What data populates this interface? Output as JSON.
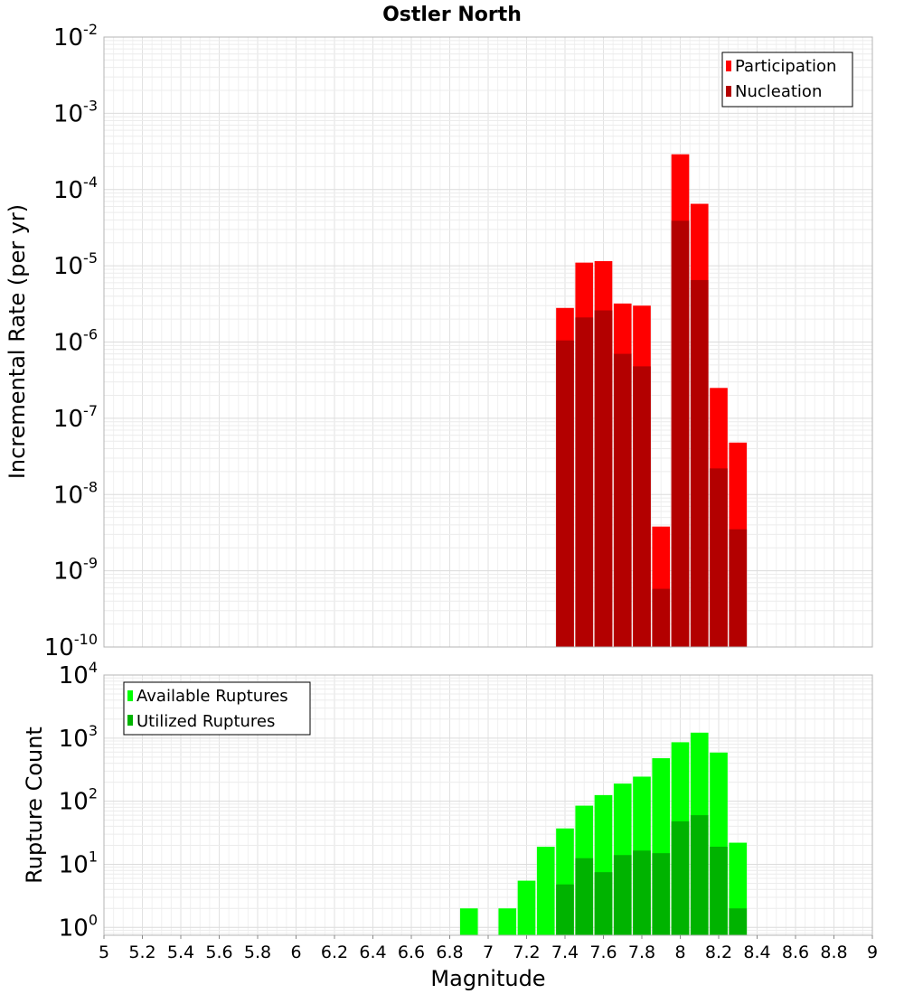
{
  "chart_data": [
    {
      "type": "bar",
      "title": "Ostler North",
      "xlabel": "",
      "ylabel": "Incremental Rate (per yr)",
      "yscale": "log",
      "ylim": [
        1e-10,
        0.01
      ],
      "xlim": [
        5,
        9
      ],
      "grid": true,
      "legend_position": "top-right",
      "y_ticks": [
        {
          "base": "10",
          "exp": "-2"
        },
        {
          "base": "10",
          "exp": "-3"
        },
        {
          "base": "10",
          "exp": "-4"
        },
        {
          "base": "10",
          "exp": "-5"
        },
        {
          "base": "10",
          "exp": "-6"
        },
        {
          "base": "10",
          "exp": "-7"
        },
        {
          "base": "10",
          "exp": "-8"
        },
        {
          "base": "10",
          "exp": "-9"
        },
        {
          "base": "10",
          "exp": "-10"
        }
      ],
      "x": [
        7.4,
        7.5,
        7.6,
        7.7,
        7.8,
        7.9,
        8.0,
        8.1,
        8.2,
        8.3
      ],
      "series": [
        {
          "name": "Participation",
          "color": "#ff0000",
          "values": [
            2.8e-06,
            1.1e-05,
            1.15e-05,
            3.2e-06,
            3e-06,
            3.8e-09,
            0.00029,
            6.5e-05,
            2.5e-07,
            4.8e-08
          ]
        },
        {
          "name": "Nucleation",
          "color": "#b30000",
          "values": [
            1.05e-06,
            2.1e-06,
            2.6e-06,
            7e-07,
            4.8e-07,
            5.8e-10,
            3.9e-05,
            6.5e-06,
            2.2e-08,
            3.5e-09
          ]
        }
      ]
    },
    {
      "type": "bar",
      "title": "",
      "xlabel": "Magnitude",
      "ylabel": "Rupture Count",
      "yscale": "log",
      "ylim": [
        0.75,
        10000
      ],
      "xlim": [
        5,
        9
      ],
      "grid": true,
      "legend_position": "top-left",
      "y_ticks": [
        {
          "base": "10",
          "exp": "4"
        },
        {
          "base": "10",
          "exp": "3"
        },
        {
          "base": "10",
          "exp": "2"
        },
        {
          "base": "10",
          "exp": "1"
        },
        {
          "base": "10",
          "exp": "0"
        }
      ],
      "x_ticks": [
        "5",
        "5.2",
        "5.4",
        "5.6",
        "5.8",
        "6",
        "6.2",
        "6.4",
        "6.6",
        "6.8",
        "7",
        "7.2",
        "7.4",
        "7.6",
        "7.8",
        "8",
        "8.2",
        "8.4",
        "8.6",
        "8.8",
        "9"
      ],
      "x": [
        6.9,
        7.1,
        7.2,
        7.3,
        7.4,
        7.5,
        7.6,
        7.7,
        7.8,
        7.9,
        8.0,
        8.1,
        8.2,
        8.3
      ],
      "series": [
        {
          "name": "Available Ruptures",
          "color": "#00ff00",
          "values": [
            2,
            2,
            5.5,
            19,
            37,
            85,
            125,
            190,
            245,
            480,
            860,
            1220,
            590,
            22
          ]
        },
        {
          "name": "Utilized Ruptures",
          "color": "#00b300",
          "values": [
            null,
            null,
            null,
            null,
            4.8,
            12.5,
            7.5,
            14,
            16.5,
            15,
            48,
            60,
            19,
            2
          ]
        }
      ]
    }
  ]
}
